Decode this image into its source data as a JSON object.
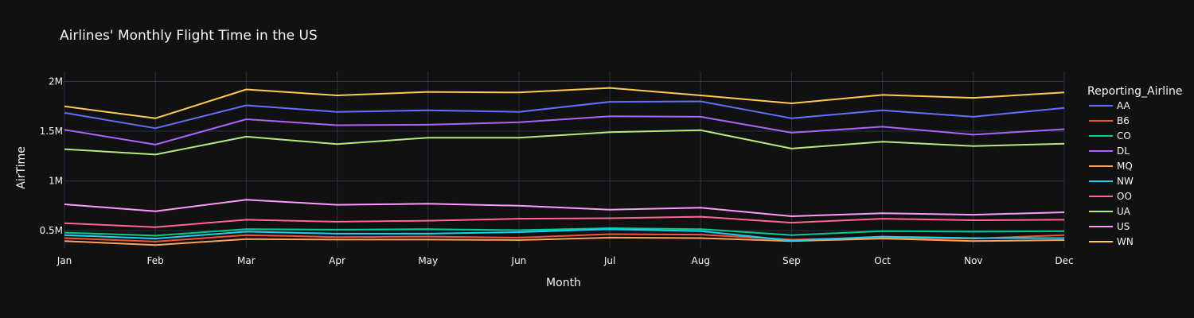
{
  "chart_data": {
    "type": "line",
    "title": "Airlines' Monthly Flight Time in the US",
    "xlabel": "Month",
    "ylabel": "AirTime",
    "categories": [
      "Jan",
      "Feb",
      "Mar",
      "Apr",
      "May",
      "Jun",
      "Jul",
      "Aug",
      "Sep",
      "Oct",
      "Nov",
      "Dec"
    ],
    "ylim": [
      325000,
      2100000
    ],
    "yticks": [
      {
        "value": 500000,
        "label": "0.5M"
      },
      {
        "value": 1000000,
        "label": "1M"
      },
      {
        "value": 1500000,
        "label": "1.5M"
      },
      {
        "value": 2000000,
        "label": "2M"
      }
    ],
    "grid": true,
    "legend": {
      "title": "Reporting_Airline",
      "placement": "right"
    },
    "series": [
      {
        "name": "AA",
        "color": "#636efa",
        "values": [
          1685000,
          1530000,
          1760000,
          1695000,
          1710000,
          1695000,
          1795000,
          1800000,
          1630000,
          1710000,
          1645000,
          1735000
        ]
      },
      {
        "name": "B6",
        "color": "#EF553B",
        "values": [
          425000,
          390000,
          455000,
          435000,
          440000,
          430000,
          465000,
          460000,
          410000,
          430000,
          420000,
          455000
        ]
      },
      {
        "name": "CO",
        "color": "#00cc96",
        "values": [
          480000,
          450000,
          515000,
          510000,
          515000,
          505000,
          525000,
          515000,
          455000,
          495000,
          490000,
          495000
        ]
      },
      {
        "name": "DL",
        "color": "#ab63fa",
        "values": [
          1515000,
          1365000,
          1620000,
          1560000,
          1565000,
          1590000,
          1650000,
          1645000,
          1485000,
          1545000,
          1465000,
          1520000
        ]
      },
      {
        "name": "MQ",
        "color": "#FFA15A",
        "values": [
          395000,
          355000,
          415000,
          410000,
          410000,
          405000,
          430000,
          425000,
          395000,
          420000,
          395000,
          405000
        ]
      },
      {
        "name": "NW",
        "color": "#19d3f3",
        "values": [
          455000,
          420000,
          490000,
          470000,
          470000,
          485000,
          515000,
          495000,
          400000,
          440000,
          425000,
          425000
        ]
      },
      {
        "name": "OO",
        "color": "#FF6692",
        "values": [
          575000,
          535000,
          610000,
          590000,
          600000,
          620000,
          625000,
          640000,
          580000,
          620000,
          605000,
          610000
        ]
      },
      {
        "name": "UA",
        "color": "#B6E880",
        "values": [
          1320000,
          1265000,
          1445000,
          1370000,
          1435000,
          1435000,
          1490000,
          1510000,
          1325000,
          1395000,
          1350000,
          1375000
        ]
      },
      {
        "name": "US",
        "color": "#FF97FF",
        "values": [
          765000,
          695000,
          810000,
          760000,
          770000,
          750000,
          710000,
          730000,
          645000,
          675000,
          660000,
          685000
        ]
      },
      {
        "name": "WN",
        "color": "#FECB52",
        "values": [
          1750000,
          1630000,
          1920000,
          1860000,
          1895000,
          1890000,
          1935000,
          1860000,
          1780000,
          1865000,
          1835000,
          1890000
        ]
      }
    ]
  }
}
